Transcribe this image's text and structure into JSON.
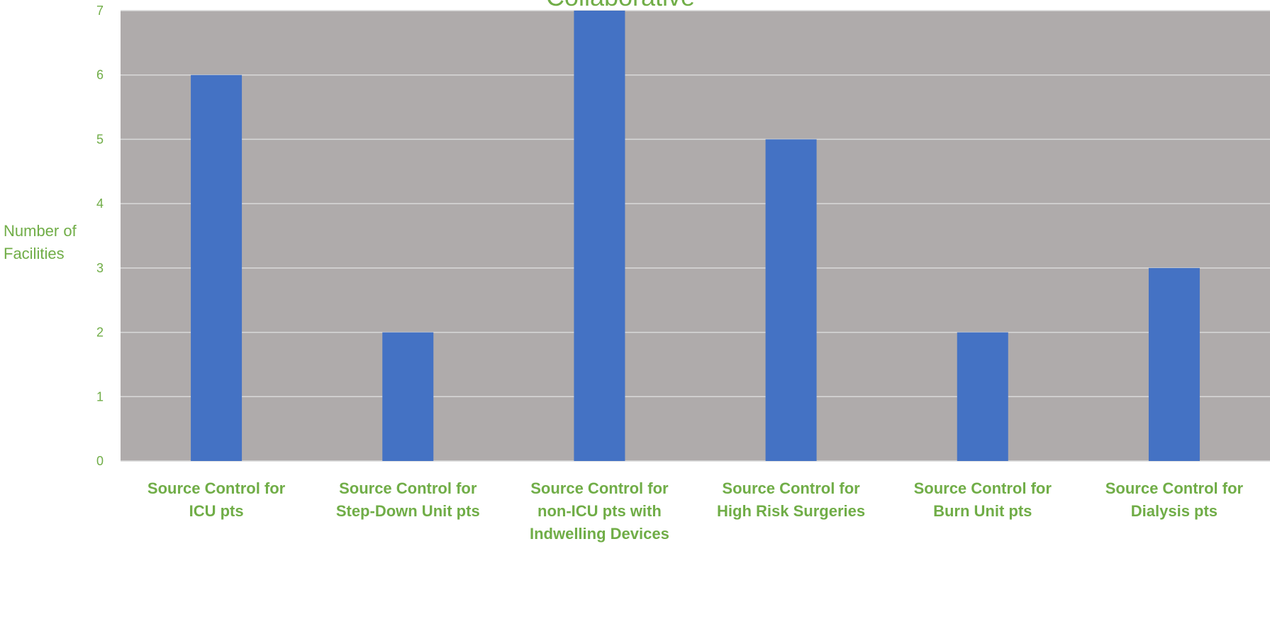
{
  "chart_data": {
    "type": "bar",
    "title": "Collaborative",
    "xlabel": "",
    "ylabel_lines": [
      "Number of",
      "Facilities"
    ],
    "categories": [
      [
        "Source Control for",
        "ICU pts"
      ],
      [
        "Source Control for",
        "Step-Down Unit pts"
      ],
      [
        "Source Control for",
        "non-ICU pts with",
        "Indwelling Devices"
      ],
      [
        "Source Control for",
        "High Risk Surgeries"
      ],
      [
        "Source Control for",
        "Burn Unit pts"
      ],
      [
        "Source Control for",
        "Dialysis pts"
      ]
    ],
    "values": [
      6,
      2,
      7,
      5,
      2,
      3
    ],
    "ylim": [
      0,
      7
    ],
    "yticks": [
      "0",
      "1",
      "2",
      "3",
      "4",
      "5",
      "6",
      "7"
    ],
    "grid": true,
    "legend": "none",
    "colors": {
      "bar": "#4472C4",
      "plot_background": "#AFABAB",
      "gridline": "#D9D9D9",
      "text": "#70AD47"
    }
  }
}
